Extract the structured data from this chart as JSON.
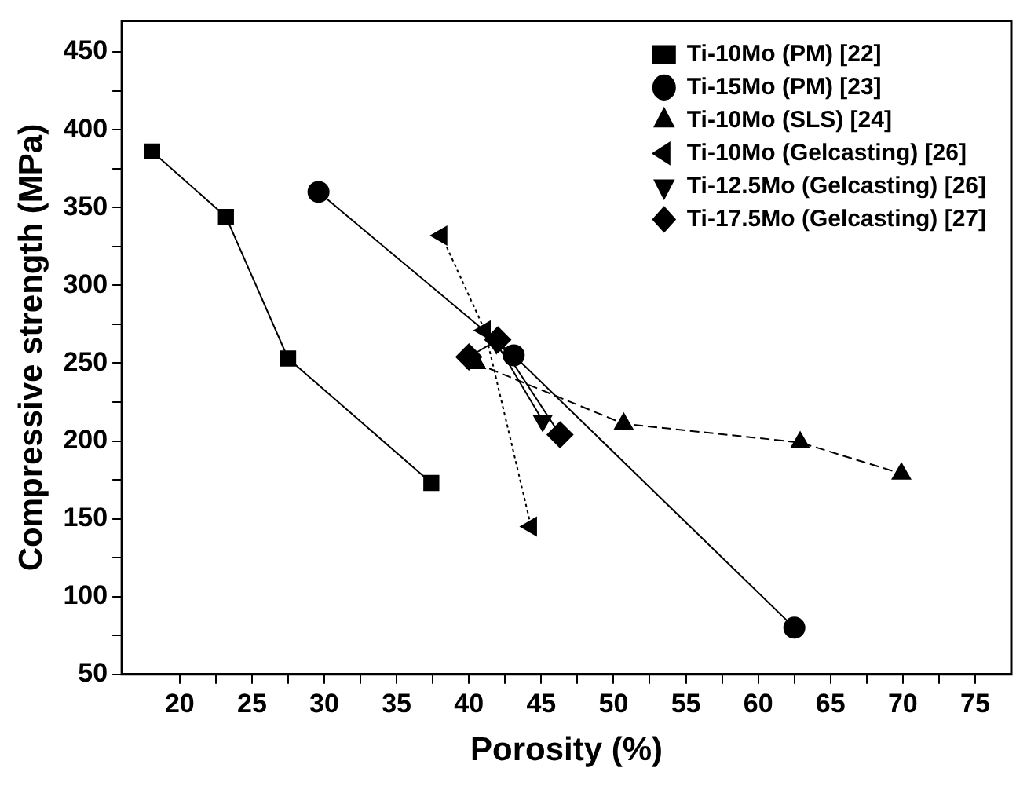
{
  "chart_data": {
    "type": "line",
    "xlabel": "Porosity (%)",
    "ylabel": "Compressive strength (MPa)",
    "xlim": [
      16,
      77.5
    ],
    "ylim": [
      50,
      470
    ],
    "xticks": [
      20,
      {
        "value": 22.5,
        "label": null
      },
      25,
      {
        "value": 27.5,
        "label": null
      },
      30,
      {
        "value": 32.5,
        "label": null
      },
      35,
      {
        "value": 37.5,
        "label": null
      },
      40,
      {
        "value": 42.5,
        "label": null
      },
      45,
      {
        "value": 47.5,
        "label": null
      },
      50,
      {
        "value": 52.5,
        "label": null
      },
      55,
      {
        "value": 57.5,
        "label": null
      },
      60,
      {
        "value": 62.5,
        "label": null
      },
      65,
      {
        "value": 67.5,
        "label": null
      },
      70,
      {
        "value": 72.5,
        "label": null
      },
      75
    ],
    "yticks": [
      50,
      {
        "value": 75,
        "label": null
      },
      100,
      {
        "value": 125,
        "label": null
      },
      150,
      {
        "value": 175,
        "label": null
      },
      200,
      {
        "value": 225,
        "label": null
      },
      250,
      {
        "value": 275,
        "label": null
      },
      300,
      {
        "value": 325,
        "label": null
      },
      350,
      {
        "value": 375,
        "label": null
      },
      400,
      {
        "value": 425,
        "label": null
      },
      450
    ],
    "grid": false,
    "legend": "top right",
    "series": [
      {
        "name": "Ti-10Mo (PM) [22]",
        "color": "#000000",
        "marker": "square",
        "line_style": "solid",
        "x": [
          18.1,
          23.2,
          27.5,
          37.4
        ],
        "values": [
          386,
          344,
          253,
          173
        ]
      },
      {
        "name": "Ti-15Mo (PM) [23]",
        "color": "#000000",
        "marker": "circle",
        "line_style": "solid",
        "x": [
          29.6,
          43.1,
          62.5
        ],
        "values": [
          360,
          255,
          80
        ]
      },
      {
        "name": "Ti-10Mo (SLS) [24]",
        "color": "#000000",
        "marker": "triangle",
        "line_style": "dashed",
        "x": [
          40.5,
          50.7,
          62.9,
          69.9
        ],
        "values": [
          250,
          211,
          199,
          179
        ]
      },
      {
        "name": "Ti-10Mo (Gelcasting) [26]",
        "color": "#000000",
        "marker": "triangle-left",
        "line_style": "dotted",
        "x": [
          38.1,
          41.1,
          44.3
        ],
        "values": [
          332,
          271,
          145
        ]
      },
      {
        "name": "Ti-12.5Mo (Gelcasting) [26]",
        "color": "#000000",
        "marker": "triangle-down",
        "line_style": "solid",
        "x": [
          41.9,
          45.1
        ],
        "values": [
          263,
          213
        ]
      },
      {
        "name": "Ti-17.5Mo (Gelcasting) [27]",
        "color": "#000000",
        "marker": "diamond",
        "line_style": "solid",
        "x": [
          40,
          42,
          46.3
        ],
        "values": [
          254,
          265,
          204
        ]
      }
    ]
  }
}
